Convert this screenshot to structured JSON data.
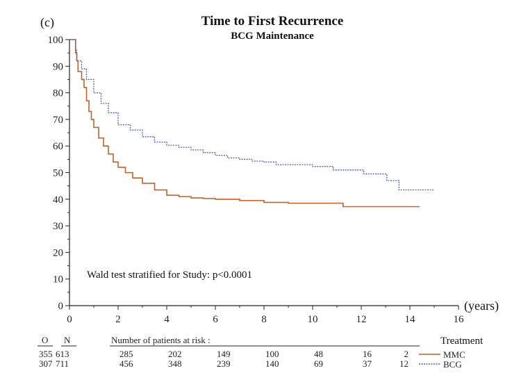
{
  "chart_data": {
    "type": "line",
    "panel_label": "(c)",
    "title": "Time to First Recurrence",
    "subtitle": "BCG Maintenance",
    "xlabel": "(years)",
    "ylabel": "",
    "xlim": [
      0,
      16
    ],
    "ylim": [
      0,
      100
    ],
    "x_ticks": [
      0,
      2,
      4,
      6,
      8,
      10,
      12,
      14,
      16
    ],
    "y_ticks": [
      0,
      10,
      20,
      30,
      40,
      50,
      60,
      70,
      80,
      90,
      100
    ],
    "grid": false,
    "annotation": "Wald test stratified for Study: p<0.0001",
    "legend": {
      "title": "Treatment",
      "placement": "bottom-right"
    },
    "series": [
      {
        "name": "MMC",
        "color": "#c0622a",
        "dash": "solid",
        "points": [
          [
            0,
            100
          ],
          [
            0.2,
            100
          ],
          [
            0.25,
            95
          ],
          [
            0.3,
            92
          ],
          [
            0.35,
            88
          ],
          [
            0.5,
            85
          ],
          [
            0.6,
            82
          ],
          [
            0.7,
            77
          ],
          [
            0.8,
            73
          ],
          [
            0.9,
            70
          ],
          [
            1.0,
            67
          ],
          [
            1.2,
            63
          ],
          [
            1.4,
            60
          ],
          [
            1.6,
            57
          ],
          [
            1.8,
            54
          ],
          [
            2.0,
            52
          ],
          [
            2.3,
            50
          ],
          [
            2.6,
            48
          ],
          [
            3.0,
            46
          ],
          [
            3.5,
            43.5
          ],
          [
            4.0,
            41.5
          ],
          [
            4.5,
            41
          ],
          [
            5.0,
            40.5
          ],
          [
            5.5,
            40.3
          ],
          [
            6.0,
            40
          ],
          [
            7.0,
            39.5
          ],
          [
            8.0,
            38.8
          ],
          [
            9.0,
            38.5
          ],
          [
            10.0,
            38.5
          ],
          [
            11.2,
            38.5
          ],
          [
            11.25,
            37.2
          ],
          [
            12.0,
            37.2
          ],
          [
            13.0,
            37.2
          ],
          [
            14.4,
            37.2
          ]
        ],
        "at_risk": [
          285,
          202,
          149,
          100,
          48,
          16,
          2
        ],
        "observed": 355,
        "n": 613
      },
      {
        "name": "BCG",
        "color": "#4a5fb0",
        "dash": "dotted",
        "points": [
          [
            0,
            100
          ],
          [
            0.2,
            100
          ],
          [
            0.25,
            96
          ],
          [
            0.3,
            92
          ],
          [
            0.5,
            89
          ],
          [
            0.7,
            85
          ],
          [
            1.0,
            80
          ],
          [
            1.3,
            76
          ],
          [
            1.6,
            72.5
          ],
          [
            2.0,
            68
          ],
          [
            2.5,
            66
          ],
          [
            3.0,
            63.5
          ],
          [
            3.5,
            61.5
          ],
          [
            4.0,
            60.3
          ],
          [
            4.5,
            59.5
          ],
          [
            5.0,
            58.5
          ],
          [
            5.5,
            57.5
          ],
          [
            6.0,
            56.5
          ],
          [
            6.5,
            55.5
          ],
          [
            7.0,
            55
          ],
          [
            7.5,
            54.3
          ],
          [
            8.0,
            54
          ],
          [
            8.5,
            53
          ],
          [
            9.0,
            53
          ],
          [
            9.5,
            53
          ],
          [
            10.0,
            52.3
          ],
          [
            10.8,
            52.3
          ],
          [
            10.85,
            51
          ],
          [
            11.5,
            51
          ],
          [
            12.0,
            51
          ],
          [
            12.1,
            49.5
          ],
          [
            13.0,
            49.5
          ],
          [
            13.05,
            47
          ],
          [
            13.5,
            47
          ],
          [
            13.55,
            43.5
          ],
          [
            15.0,
            43.5
          ]
        ],
        "at_risk": [
          456,
          348,
          239,
          140,
          69,
          37,
          12
        ],
        "observed": 307,
        "n": 711
      }
    ],
    "risk_table": {
      "col_o": "O",
      "col_n": "N",
      "header": "Number of patients at risk :",
      "times": [
        2,
        4,
        6,
        8,
        10,
        12,
        14
      ]
    }
  }
}
